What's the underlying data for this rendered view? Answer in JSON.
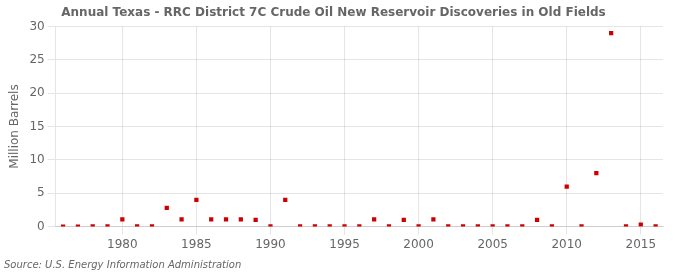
{
  "chart_data": {
    "type": "scatter",
    "title": "Annual Texas - RRC District 7C Crude Oil New Reservoir Discoveries in Old Fields",
    "ylabel": "Million Barrels",
    "source": "Source: U.S. Energy Information Administration",
    "x": [
      1976,
      1977,
      1978,
      1979,
      1980,
      1981,
      1982,
      1983,
      1984,
      1985,
      1986,
      1987,
      1988,
      1989,
      1990,
      1991,
      1992,
      1993,
      1994,
      1995,
      1996,
      1997,
      1998,
      1999,
      2000,
      2001,
      2002,
      2003,
      2004,
      2005,
      2006,
      2007,
      2008,
      2009,
      2010,
      2011,
      2012,
      2013,
      2014,
      2015,
      2016
    ],
    "values": [
      0.0,
      0.0,
      0.05,
      0.05,
      1.1,
      0.05,
      0.05,
      2.8,
      1.1,
      4.0,
      1.1,
      1.1,
      1.1,
      1.0,
      0.05,
      4.0,
      0.05,
      0.05,
      0.05,
      0.05,
      0.05,
      1.1,
      0.05,
      1.0,
      0.05,
      1.1,
      0.05,
      0.05,
      0.05,
      0.05,
      0.05,
      0.05,
      1.0,
      0.05,
      6.0,
      0.05,
      8.0,
      29.0,
      0.05,
      0.3,
      0.05
    ],
    "color": "#cc0000",
    "marker": "square",
    "xlim": [
      1975.5,
      2016.5
    ],
    "ylim": [
      0,
      30
    ],
    "xticks": [
      1980,
      1985,
      1990,
      1995,
      2000,
      2005,
      2010,
      2015
    ],
    "yticks": [
      0,
      5,
      10,
      15,
      20,
      25,
      30
    ],
    "grid": true
  }
}
